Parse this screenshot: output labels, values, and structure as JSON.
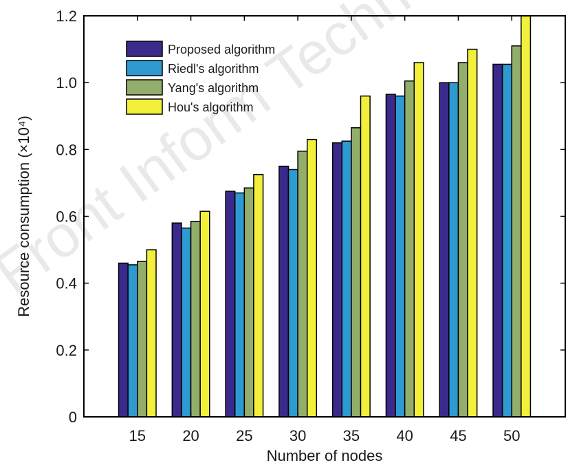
{
  "watermark": "Front Inform Technol Ele",
  "chart_data": {
    "type": "bar",
    "xlabel": "Number of nodes",
    "ylabel": "Resource consumption (×10⁴)",
    "categories": [
      "15",
      "20",
      "25",
      "30",
      "35",
      "40",
      "45",
      "50"
    ],
    "ylim": [
      0,
      1.2
    ],
    "yticks": [
      0,
      0.2,
      0.4,
      0.6,
      0.8,
      1.0,
      1.2
    ],
    "ytick_labels": [
      "0",
      "0.2",
      "0.4",
      "0.6",
      "0.8",
      "1.0",
      "1.2"
    ],
    "legend_position": "top-left",
    "grid": false,
    "series": [
      {
        "name": "Proposed algorithm",
        "color": "#3b2a8c",
        "values": [
          0.46,
          0.58,
          0.675,
          0.75,
          0.82,
          0.965,
          1.0,
          1.055
        ]
      },
      {
        "name": "Riedl's algorithm",
        "color": "#2f9ad1",
        "values": [
          0.455,
          0.565,
          0.67,
          0.74,
          0.825,
          0.96,
          1.0,
          1.055
        ]
      },
      {
        "name": "Yang's algorithm",
        "color": "#93ae6a",
        "values": [
          0.465,
          0.585,
          0.685,
          0.795,
          0.865,
          1.005,
          1.06,
          1.11
        ]
      },
      {
        "name": "Hou's algorithm",
        "color": "#f2f03b",
        "values": [
          0.5,
          0.615,
          0.725,
          0.83,
          0.96,
          1.06,
          1.1,
          1.2
        ]
      }
    ]
  }
}
